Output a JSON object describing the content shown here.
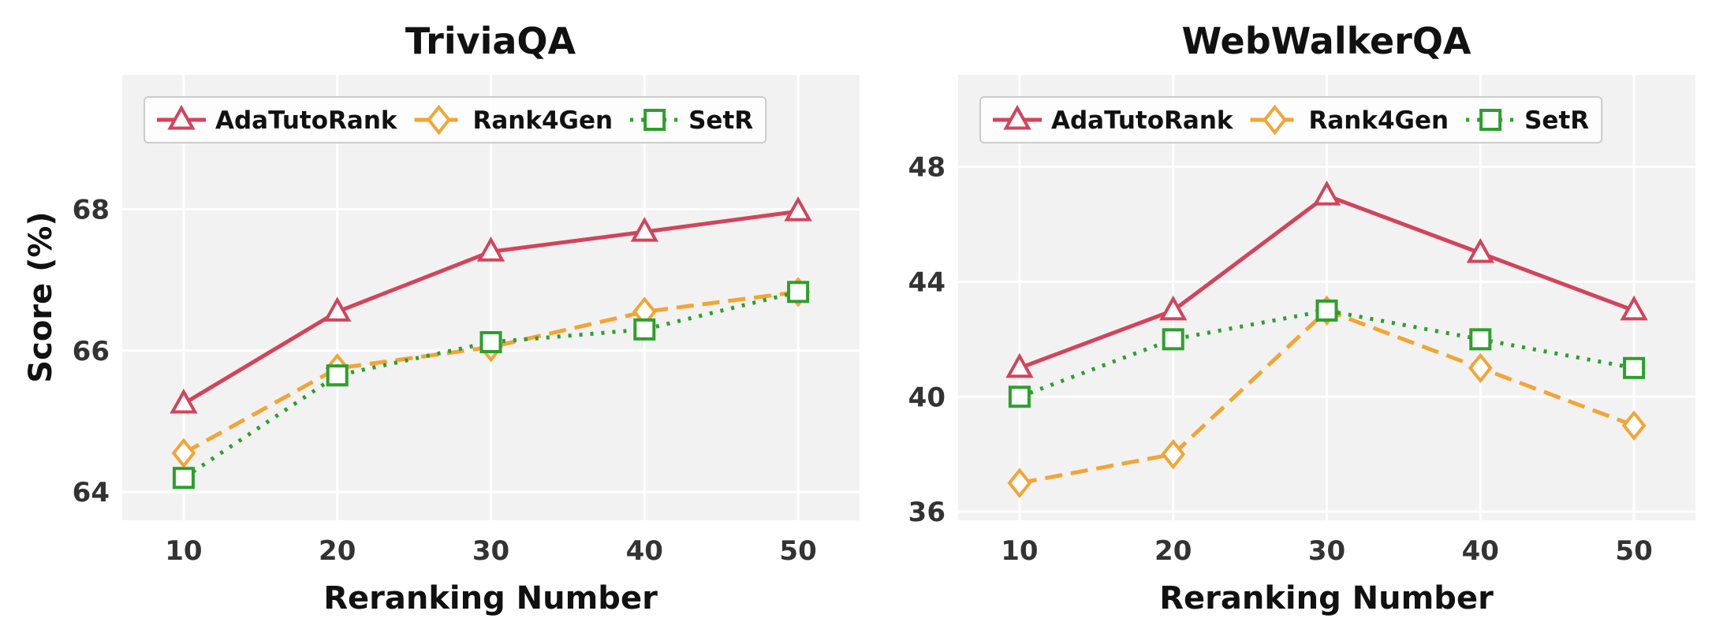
{
  "chart_data": [
    {
      "type": "line",
      "title": "TriviaQA",
      "xlabel": "Reranking Number",
      "ylabel": "Score (%)",
      "x": [
        10,
        20,
        30,
        40,
        50
      ],
      "xlim": [
        6,
        54
      ],
      "ylim": [
        63.6,
        69.9
      ],
      "yticks": [
        64,
        66,
        68
      ],
      "grid": true,
      "legend": "top",
      "series": [
        {
          "name": "AdaTutoRank",
          "values": [
            65.25,
            66.55,
            67.4,
            67.68,
            67.97
          ],
          "color": "#d2445a",
          "marker": "triangle",
          "dash": "solid"
        },
        {
          "name": "Rank4Gen",
          "values": [
            64.55,
            65.75,
            66.05,
            66.55,
            66.83
          ],
          "color": "#f2a535",
          "marker": "diamond",
          "dash": "dashed"
        },
        {
          "name": "SetR",
          "values": [
            64.2,
            65.65,
            66.12,
            66.3,
            66.83
          ],
          "color": "#2ca02c",
          "marker": "square",
          "dash": "dotted"
        }
      ]
    },
    {
      "type": "line",
      "title": "WebWalkerQA",
      "xlabel": "Reranking Number",
      "ylabel": "",
      "x": [
        10,
        20,
        30,
        40,
        50
      ],
      "xlim": [
        6,
        54
      ],
      "ylim": [
        35.7,
        51.2
      ],
      "yticks": [
        36,
        40,
        44,
        48
      ],
      "grid": true,
      "legend": "top",
      "series": [
        {
          "name": "AdaTutoRank",
          "values": [
            41,
            43,
            47,
            45,
            43
          ],
          "color": "#d2445a",
          "marker": "triangle",
          "dash": "solid"
        },
        {
          "name": "Rank4Gen",
          "values": [
            37,
            38,
            43,
            41,
            39
          ],
          "color": "#f2a535",
          "marker": "diamond",
          "dash": "dashed"
        },
        {
          "name": "SetR",
          "values": [
            40,
            42,
            43,
            42,
            41
          ],
          "color": "#2ca02c",
          "marker": "square",
          "dash": "dotted"
        }
      ]
    }
  ]
}
